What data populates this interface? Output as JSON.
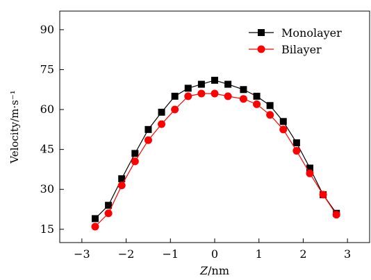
{
  "chart_data": {
    "type": "line",
    "xlabel_var": "Z",
    "xlabel_unit": "/nm",
    "ylabel": "Velocity/m·s⁻¹",
    "xlim": [
      -3.5,
      3.5
    ],
    "ylim": [
      10,
      97
    ],
    "xticks": [
      -3,
      -2,
      -1,
      0,
      1,
      2,
      3
    ],
    "xtick_labels": [
      "−3",
      "−2",
      "−1",
      "0",
      "1",
      "2",
      "3"
    ],
    "yticks": [
      15,
      30,
      45,
      60,
      75,
      90
    ],
    "ytick_labels": [
      "15",
      "30",
      "45",
      "60",
      "75",
      "90"
    ],
    "grid": false,
    "legend_position": "top-right",
    "series": [
      {
        "name": "Monolayer",
        "color": "#000000",
        "marker": "square",
        "x": [
          -2.7,
          -2.4,
          -2.1,
          -1.8,
          -1.5,
          -1.2,
          -0.9,
          -0.6,
          -0.3,
          0.0,
          0.3,
          0.65,
          0.95,
          1.25,
          1.55,
          1.85,
          2.15,
          2.45,
          2.75
        ],
        "y": [
          19,
          24,
          34,
          43.5,
          52.5,
          59,
          65,
          68,
          69.5,
          71,
          69.5,
          67.5,
          65,
          61.5,
          55.5,
          47.5,
          38,
          28,
          21
        ]
      },
      {
        "name": "Bilayer",
        "color": "#ff0000",
        "marker": "circle",
        "x": [
          -2.7,
          -2.4,
          -2.1,
          -1.8,
          -1.5,
          -1.2,
          -0.9,
          -0.6,
          -0.3,
          0.0,
          0.3,
          0.65,
          0.95,
          1.25,
          1.55,
          1.85,
          2.15,
          2.45,
          2.75
        ],
        "y": [
          16,
          21,
          31.5,
          40.5,
          48.5,
          54.5,
          60,
          65,
          66,
          66,
          65,
          64,
          62,
          58,
          52.5,
          44.5,
          36,
          28,
          20.5
        ]
      }
    ]
  }
}
